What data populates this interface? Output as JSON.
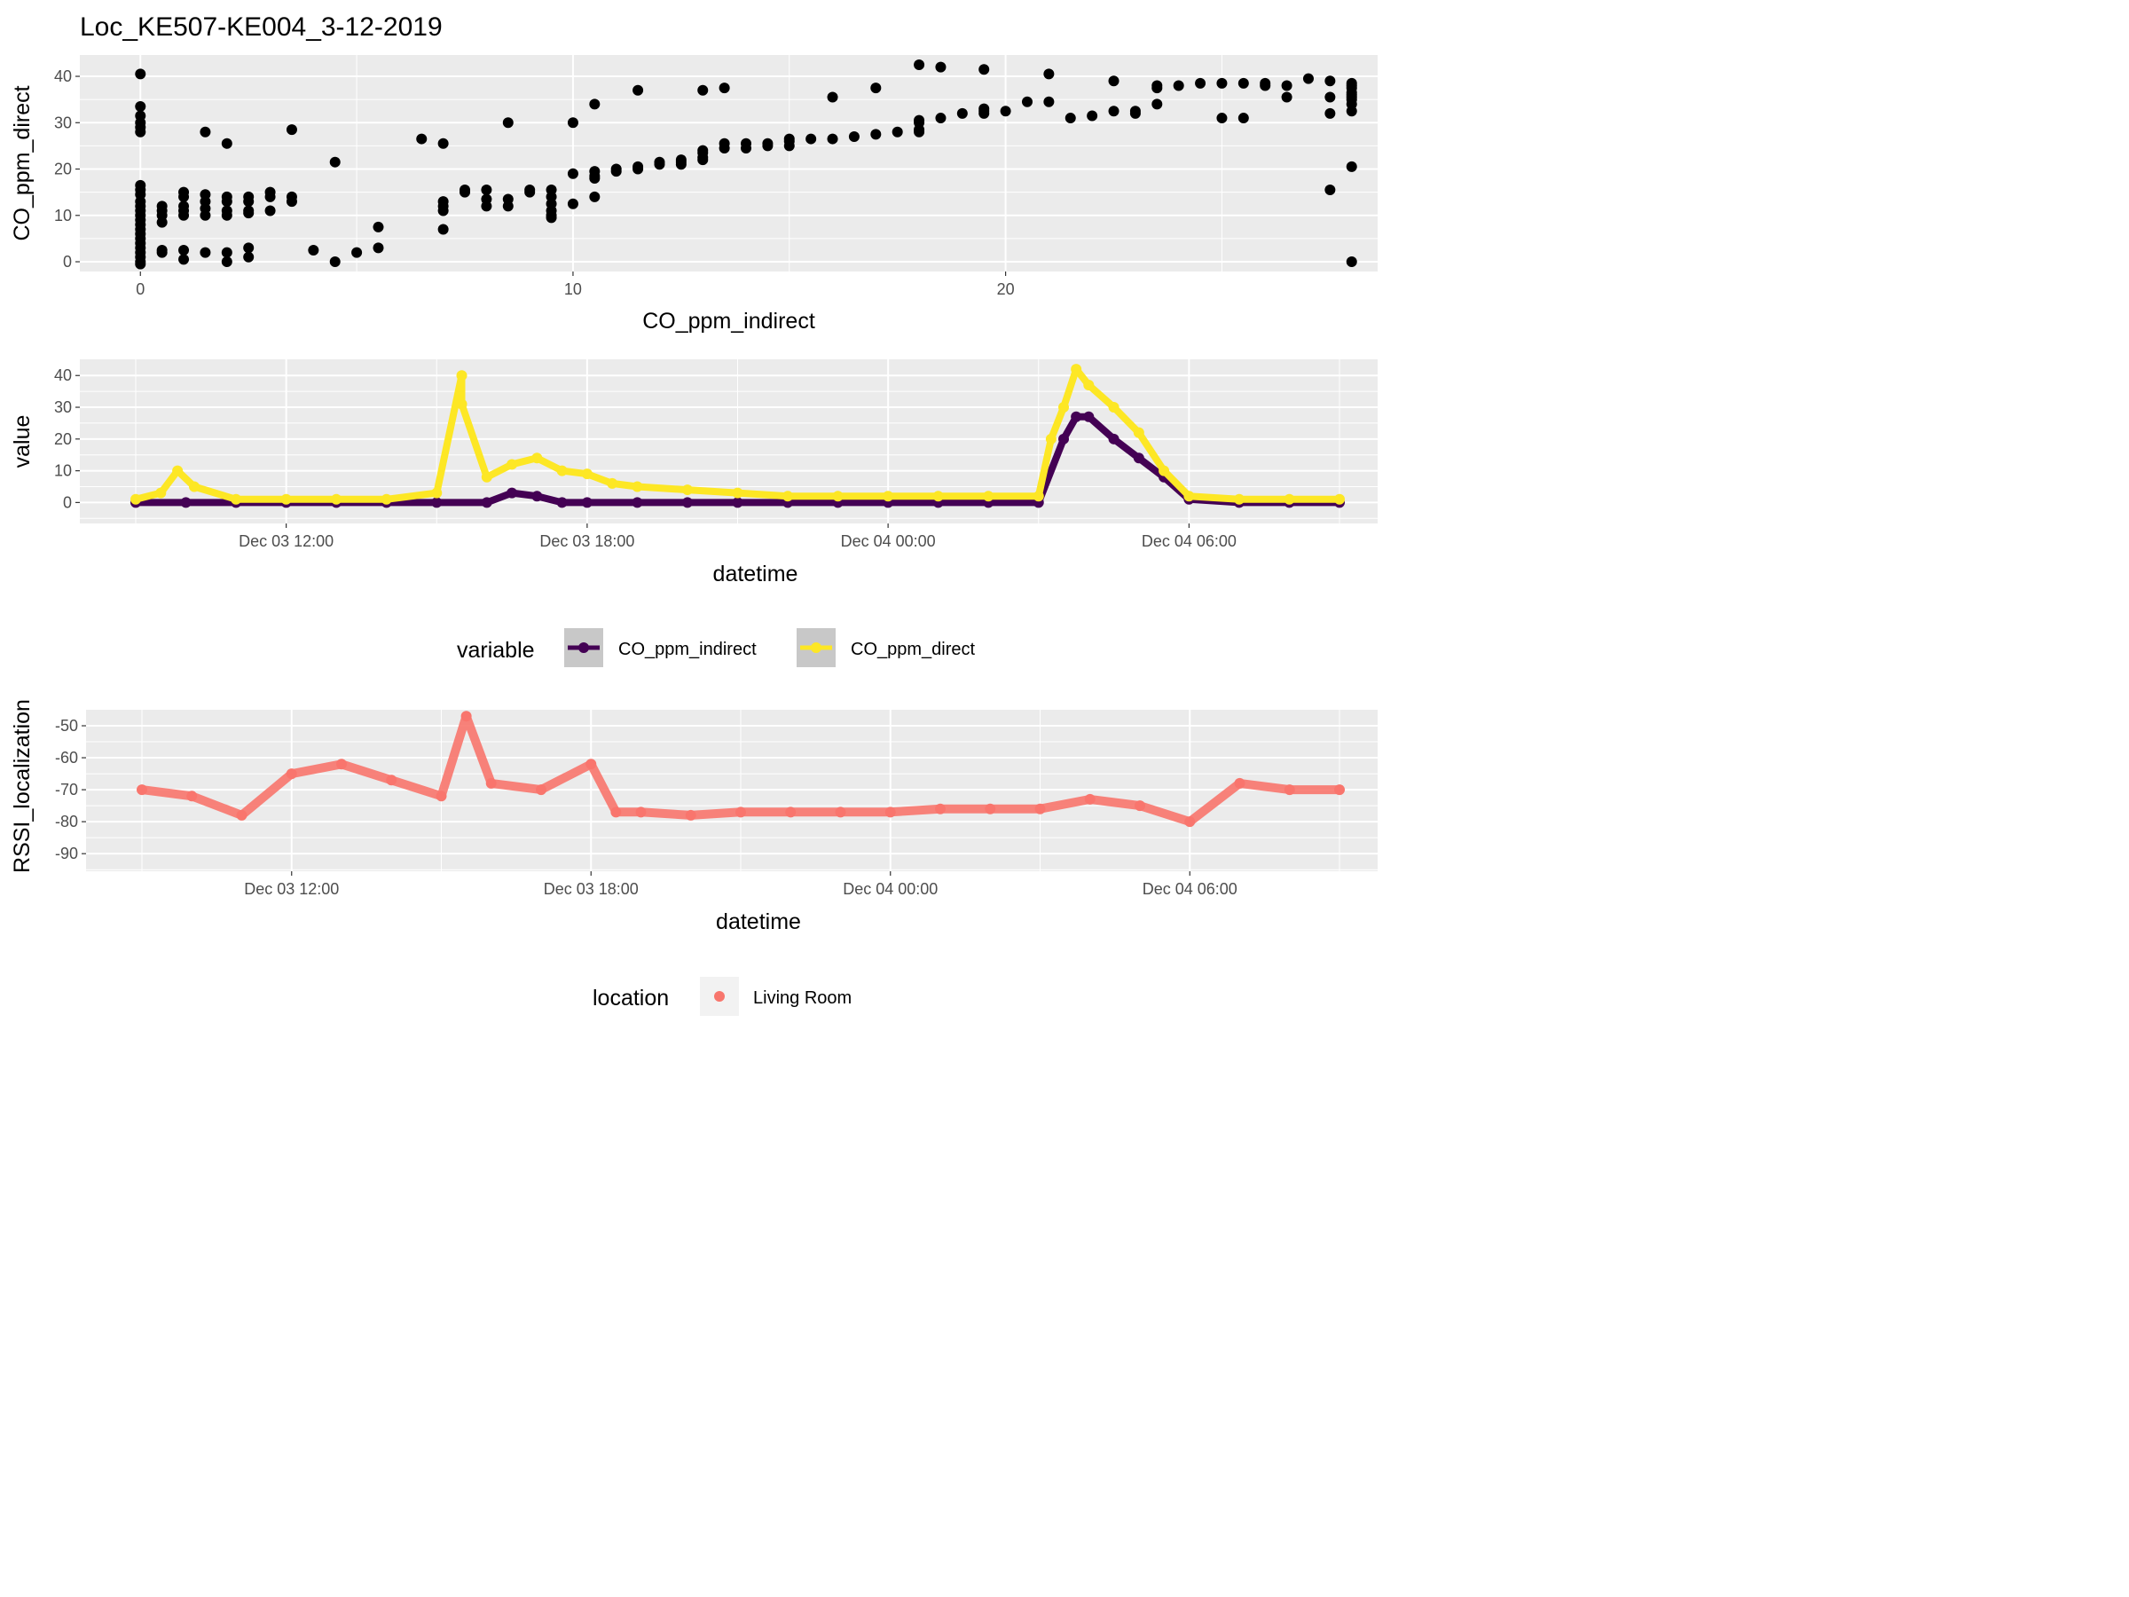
{
  "title": "Loc_KE507-KE004_3-12-2019",
  "chart_data": [
    {
      "type": "scatter",
      "xlabel": "CO_ppm_indirect",
      "ylabel": "CO_ppm_direct",
      "xlim": [
        -1.4,
        28.6
      ],
      "ylim": [
        -2.1,
        44.6
      ],
      "x_ticks": [
        0,
        10,
        20
      ],
      "y_ticks": [
        0,
        10,
        20,
        30,
        40
      ],
      "grid": true,
      "points": [
        [
          0,
          40.5
        ],
        [
          0,
          33.5
        ],
        [
          0,
          31.5
        ],
        [
          0,
          30
        ],
        [
          0,
          29
        ],
        [
          0,
          28
        ],
        [
          0,
          16.5
        ],
        [
          0,
          15.5
        ],
        [
          0,
          14.5
        ],
        [
          0,
          13
        ],
        [
          0,
          12
        ],
        [
          0,
          11
        ],
        [
          0,
          10
        ],
        [
          0,
          9
        ],
        [
          0,
          8
        ],
        [
          0,
          7
        ],
        [
          0,
          6
        ],
        [
          0,
          5
        ],
        [
          0,
          4
        ],
        [
          0,
          3
        ],
        [
          0,
          2
        ],
        [
          0,
          1
        ],
        [
          0,
          0
        ],
        [
          0,
          -0.5
        ],
        [
          0.5,
          12
        ],
        [
          0.5,
          11
        ],
        [
          0.5,
          10
        ],
        [
          0.5,
          8.5
        ],
        [
          0.5,
          2.5
        ],
        [
          0.5,
          2
        ],
        [
          1,
          15
        ],
        [
          1,
          14
        ],
        [
          1,
          12
        ],
        [
          1,
          11
        ],
        [
          1,
          10
        ],
        [
          1,
          2.5
        ],
        [
          1,
          0.5
        ],
        [
          1.5,
          28
        ],
        [
          1.5,
          14.5
        ],
        [
          1.5,
          13
        ],
        [
          1.5,
          11.5
        ],
        [
          1.5,
          10
        ],
        [
          1.5,
          2
        ],
        [
          2,
          25.5
        ],
        [
          2,
          14
        ],
        [
          2,
          13
        ],
        [
          2,
          11
        ],
        [
          2,
          10
        ],
        [
          2,
          2
        ],
        [
          2,
          0
        ],
        [
          2.5,
          14
        ],
        [
          2.5,
          13
        ],
        [
          2.5,
          11
        ],
        [
          2.5,
          10.5
        ],
        [
          2.5,
          3
        ],
        [
          2.5,
          1
        ],
        [
          3,
          15
        ],
        [
          3,
          14
        ],
        [
          3,
          11
        ],
        [
          3.5,
          28.5
        ],
        [
          3.5,
          14
        ],
        [
          3.5,
          13
        ],
        [
          4,
          2.5
        ],
        [
          4.5,
          21.5
        ],
        [
          4.5,
          0
        ],
        [
          5,
          2
        ],
        [
          5.5,
          7.5
        ],
        [
          5.5,
          3
        ],
        [
          6.5,
          26.5
        ],
        [
          7,
          25.5
        ],
        [
          7,
          13
        ],
        [
          7,
          12
        ],
        [
          7,
          11
        ],
        [
          7,
          7
        ],
        [
          7.5,
          15.5
        ],
        [
          7.5,
          15
        ],
        [
          8,
          15.5
        ],
        [
          8,
          13.5
        ],
        [
          8,
          12
        ],
        [
          8.5,
          30
        ],
        [
          8.5,
          13.5
        ],
        [
          8.5,
          12
        ],
        [
          9,
          15.5
        ],
        [
          9,
          15
        ],
        [
          9.5,
          15.5
        ],
        [
          9.5,
          14
        ],
        [
          9.5,
          12.5
        ],
        [
          9.5,
          11
        ],
        [
          9.5,
          10
        ],
        [
          9.5,
          9.5
        ],
        [
          10,
          30
        ],
        [
          10,
          19
        ],
        [
          10,
          12.5
        ],
        [
          10.5,
          34
        ],
        [
          10.5,
          19.5
        ],
        [
          10.5,
          18.5
        ],
        [
          10.5,
          18
        ],
        [
          10.5,
          14
        ],
        [
          11,
          20
        ],
        [
          11,
          19.5
        ],
        [
          11.5,
          37
        ],
        [
          11.5,
          20.5
        ],
        [
          11.5,
          20
        ],
        [
          12,
          21.5
        ],
        [
          12,
          21
        ],
        [
          12.5,
          22
        ],
        [
          12.5,
          21.5
        ],
        [
          12.5,
          21
        ],
        [
          13,
          37
        ],
        [
          13,
          24
        ],
        [
          13,
          23.5
        ],
        [
          13,
          22.5
        ],
        [
          13,
          22
        ],
        [
          13.5,
          37.5
        ],
        [
          13.5,
          25.5
        ],
        [
          13.5,
          24.5
        ],
        [
          14,
          25.5
        ],
        [
          14,
          24.5
        ],
        [
          14.5,
          25.5
        ],
        [
          14.5,
          25
        ],
        [
          15,
          26.5
        ],
        [
          15,
          26
        ],
        [
          15,
          25
        ],
        [
          15.5,
          26.5
        ],
        [
          16,
          35.5
        ],
        [
          16,
          26.5
        ],
        [
          16.5,
          27
        ],
        [
          17,
          37.5
        ],
        [
          17,
          27.5
        ],
        [
          17.5,
          28
        ],
        [
          18,
          42.5
        ],
        [
          18,
          30.5
        ],
        [
          18,
          30
        ],
        [
          18,
          28.5
        ],
        [
          18,
          28
        ],
        [
          18.5,
          42
        ],
        [
          18.5,
          31
        ],
        [
          19,
          32
        ],
        [
          19.5,
          41.5
        ],
        [
          19.5,
          33
        ],
        [
          19.5,
          32.5
        ],
        [
          19.5,
          32
        ],
        [
          20,
          32.5
        ],
        [
          20.5,
          34.5
        ],
        [
          21,
          40.5
        ],
        [
          21,
          34.5
        ],
        [
          21.5,
          31
        ],
        [
          22,
          31.5
        ],
        [
          22.5,
          39
        ],
        [
          22.5,
          32.5
        ],
        [
          23,
          32.5
        ],
        [
          23,
          32
        ],
        [
          23.5,
          34
        ],
        [
          23.5,
          38
        ],
        [
          23.5,
          37.5
        ],
        [
          24,
          38
        ],
        [
          24.5,
          38.5
        ],
        [
          25,
          38.5
        ],
        [
          25,
          31
        ],
        [
          25.5,
          38.5
        ],
        [
          25.5,
          31
        ],
        [
          26,
          38.5
        ],
        [
          26,
          38
        ],
        [
          26.5,
          38
        ],
        [
          26.5,
          35.5
        ],
        [
          27,
          39.5
        ],
        [
          27.5,
          39
        ],
        [
          27.5,
          35.5
        ],
        [
          27.5,
          32
        ],
        [
          27.5,
          15.5
        ],
        [
          28,
          38.5
        ],
        [
          28,
          38
        ],
        [
          28,
          35.5
        ],
        [
          28,
          32.5
        ],
        [
          28,
          37.5
        ],
        [
          28,
          36.5
        ],
        [
          28,
          36
        ],
        [
          28,
          35
        ],
        [
          28,
          34
        ],
        [
          28,
          20.5
        ],
        [
          28,
          0
        ]
      ]
    },
    {
      "type": "scatter",
      "xlabel": "datetime",
      "ylabel": "value",
      "x_ticks": [
        "Dec 03 12:00",
        "Dec 03 18:00",
        "Dec 04 00:00",
        "Dec 04 06:00"
      ],
      "y_ticks": [
        0,
        10,
        20,
        30,
        40
      ],
      "ylim": [
        -6.6,
        45.1
      ],
      "grid": true,
      "legend": {
        "title": "variable",
        "position": "bottom",
        "items": [
          {
            "label": "CO_ppm_indirect",
            "color": "#440154"
          },
          {
            "label": "CO_ppm_direct",
            "color": "#FDE725"
          }
        ]
      },
      "series": [
        {
          "name": "CO_ppm_indirect",
          "color": "#440154",
          "points": [
            [
              "Dec 03 09:00",
              0
            ],
            [
              "Dec 03 10:00",
              0
            ],
            [
              "Dec 03 11:00",
              0
            ],
            [
              "Dec 03 12:00",
              0
            ],
            [
              "Dec 03 13:00",
              0
            ],
            [
              "Dec 03 14:00",
              0
            ],
            [
              "Dec 03 15:00",
              0
            ],
            [
              "Dec 03 16:00",
              0
            ],
            [
              "Dec 03 16:30",
              3
            ],
            [
              "Dec 03 17:00",
              2
            ],
            [
              "Dec 03 17:30",
              0
            ],
            [
              "Dec 03 18:00",
              0
            ],
            [
              "Dec 03 19:00",
              0
            ],
            [
              "Dec 03 20:00",
              0
            ],
            [
              "Dec 03 21:00",
              0
            ],
            [
              "Dec 03 22:00",
              0
            ],
            [
              "Dec 03 23:00",
              0
            ],
            [
              "Dec 04 00:00",
              0
            ],
            [
              "Dec 04 01:00",
              0
            ],
            [
              "Dec 04 02:00",
              0
            ],
            [
              "Dec 04 03:00",
              0
            ],
            [
              "Dec 04 03:30",
              20
            ],
            [
              "Dec 04 03:45",
              27
            ],
            [
              "Dec 04 04:00",
              27
            ],
            [
              "Dec 04 04:30",
              20
            ],
            [
              "Dec 04 05:00",
              14
            ],
            [
              "Dec 04 05:30",
              8
            ],
            [
              "Dec 04 06:00",
              1
            ],
            [
              "Dec 04 07:00",
              0
            ],
            [
              "Dec 04 08:00",
              0
            ],
            [
              "Dec 04 09:00",
              0
            ]
          ]
        },
        {
          "name": "CO_ppm_direct",
          "color": "#FDE725",
          "points": [
            [
              "Dec 03 09:00",
              1
            ],
            [
              "Dec 03 09:30",
              3
            ],
            [
              "Dec 03 09:50",
              10
            ],
            [
              "Dec 03 10:10",
              5
            ],
            [
              "Dec 03 11:00",
              1
            ],
            [
              "Dec 03 12:00",
              1
            ],
            [
              "Dec 03 13:00",
              1
            ],
            [
              "Dec 03 14:00",
              1
            ],
            [
              "Dec 03 15:00",
              3
            ],
            [
              "Dec 03 15:30",
              40
            ],
            [
              "Dec 03 15:30",
              31
            ],
            [
              "Dec 03 16:00",
              8
            ],
            [
              "Dec 03 16:30",
              12
            ],
            [
              "Dec 03 17:00",
              14
            ],
            [
              "Dec 03 17:30",
              10
            ],
            [
              "Dec 03 18:00",
              9
            ],
            [
              "Dec 03 18:30",
              6
            ],
            [
              "Dec 03 19:00",
              5
            ],
            [
              "Dec 03 20:00",
              4
            ],
            [
              "Dec 03 21:00",
              3
            ],
            [
              "Dec 03 22:00",
              2
            ],
            [
              "Dec 03 23:00",
              2
            ],
            [
              "Dec 04 00:00",
              2
            ],
            [
              "Dec 04 01:00",
              2
            ],
            [
              "Dec 04 02:00",
              2
            ],
            [
              "Dec 04 03:00",
              2
            ],
            [
              "Dec 04 03:15",
              20
            ],
            [
              "Dec 04 03:30",
              30
            ],
            [
              "Dec 04 03:45",
              42
            ],
            [
              "Dec 04 04:00",
              37
            ],
            [
              "Dec 04 04:30",
              30
            ],
            [
              "Dec 04 05:00",
              22
            ],
            [
              "Dec 04 05:30",
              10
            ],
            [
              "Dec 04 06:00",
              2
            ],
            [
              "Dec 04 07:00",
              1
            ],
            [
              "Dec 04 08:00",
              1
            ],
            [
              "Dec 04 09:00",
              1
            ]
          ]
        }
      ]
    },
    {
      "type": "scatter",
      "xlabel": "datetime",
      "ylabel": "RSSI_localization",
      "x_ticks": [
        "Dec 03 12:00",
        "Dec 03 18:00",
        "Dec 04 00:00",
        "Dec 04 06:00"
      ],
      "y_ticks": [
        -50,
        -60,
        -70,
        -80,
        -90
      ],
      "ylim": [
        -95.5,
        -45
      ],
      "grid": true,
      "legend": {
        "title": "location",
        "position": "bottom",
        "items": [
          {
            "label": "Living Room",
            "color": "#F8766D"
          }
        ]
      },
      "series": [
        {
          "name": "Living Room",
          "color": "#F8766D",
          "points": [
            [
              "Dec 03 09:00",
              -70
            ],
            [
              "Dec 03 10:00",
              -72
            ],
            [
              "Dec 03 11:00",
              -78
            ],
            [
              "Dec 03 12:00",
              -65
            ],
            [
              "Dec 03 13:00",
              -62
            ],
            [
              "Dec 03 14:00",
              -67
            ],
            [
              "Dec 03 15:00",
              -72
            ],
            [
              "Dec 03 15:30",
              -47
            ],
            [
              "Dec 03 16:00",
              -68
            ],
            [
              "Dec 03 17:00",
              -70
            ],
            [
              "Dec 03 18:00",
              -62
            ],
            [
              "Dec 03 18:30",
              -77
            ],
            [
              "Dec 03 19:00",
              -77
            ],
            [
              "Dec 03 20:00",
              -78
            ],
            [
              "Dec 03 21:00",
              -77
            ],
            [
              "Dec 03 22:00",
              -77
            ],
            [
              "Dec 03 23:00",
              -77
            ],
            [
              "Dec 04 00:00",
              -77
            ],
            [
              "Dec 04 01:00",
              -76
            ],
            [
              "Dec 04 02:00",
              -76
            ],
            [
              "Dec 04 03:00",
              -76
            ],
            [
              "Dec 04 04:00",
              -73
            ],
            [
              "Dec 04 05:00",
              -75
            ],
            [
              "Dec 04 06:00",
              -80
            ],
            [
              "Dec 04 07:00",
              -68
            ],
            [
              "Dec 04 08:00",
              -70
            ],
            [
              "Dec 04 09:00",
              -70
            ]
          ]
        }
      ]
    }
  ]
}
